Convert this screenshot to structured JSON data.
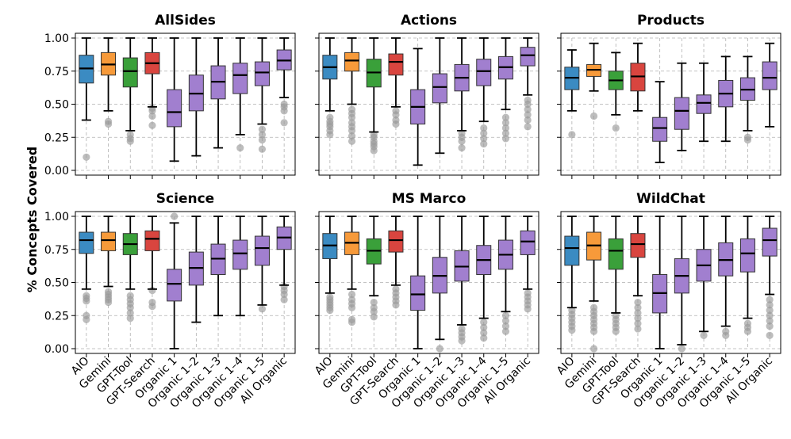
{
  "figure": {
    "ylabel": "% Concepts Covered",
    "y_ticks": [
      "0.00",
      "0.25",
      "0.50",
      "0.75",
      "1.00"
    ],
    "y_tick_values": [
      0,
      0.25,
      0.5,
      0.75,
      1.0
    ],
    "ylim": [
      0,
      1.0
    ],
    "grid": true,
    "methods": [
      "AIO",
      "Gemini",
      "GPT-Tool",
      "GPT-Search",
      "Organic 1",
      "Organic 1–2",
      "Organic 1–3",
      "Organic 1–4",
      "Organic 1–5",
      "All Organic"
    ],
    "colors": {
      "AIO": "#3b8bc2",
      "Gemini": "#f79a3a",
      "GPT-Tool": "#3aa03a",
      "GPT-Search": "#d9453f",
      "Organic": "#a17fcf"
    }
  },
  "chart_data": [
    {
      "type": "box",
      "title": "AllSides",
      "boxes": [
        {
          "min": 0.38,
          "q1": 0.66,
          "median": 0.77,
          "q3": 0.87,
          "max": 1.0,
          "outliers": [
            0.1
          ]
        },
        {
          "min": 0.45,
          "q1": 0.72,
          "median": 0.8,
          "q3": 0.89,
          "max": 1.0,
          "outliers": [
            0.35,
            0.37
          ]
        },
        {
          "min": 0.3,
          "q1": 0.63,
          "median": 0.75,
          "q3": 0.85,
          "max": 1.0,
          "outliers": [
            0.22,
            0.24,
            0.27
          ]
        },
        {
          "min": 0.48,
          "q1": 0.73,
          "median": 0.81,
          "q3": 0.89,
          "max": 1.0,
          "outliers": [
            0.34,
            0.41,
            0.45,
            0.47
          ]
        },
        {
          "min": 0.07,
          "q1": 0.33,
          "median": 0.44,
          "q3": 0.61,
          "max": 1.0,
          "outliers": []
        },
        {
          "min": 0.11,
          "q1": 0.45,
          "median": 0.58,
          "q3": 0.72,
          "max": 1.0,
          "outliers": []
        },
        {
          "min": 0.17,
          "q1": 0.54,
          "median": 0.67,
          "q3": 0.79,
          "max": 1.0,
          "outliers": []
        },
        {
          "min": 0.27,
          "q1": 0.58,
          "median": 0.72,
          "q3": 0.81,
          "max": 1.0,
          "outliers": [
            0.17
          ]
        },
        {
          "min": 0.35,
          "q1": 0.64,
          "median": 0.74,
          "q3": 0.82,
          "max": 1.0,
          "outliers": [
            0.16,
            0.23,
            0.27,
            0.31
          ]
        },
        {
          "min": 0.55,
          "q1": 0.76,
          "median": 0.83,
          "q3": 0.91,
          "max": 1.0,
          "outliers": [
            0.36,
            0.45,
            0.48,
            0.5
          ]
        }
      ]
    },
    {
      "type": "box",
      "title": "Actions",
      "boxes": [
        {
          "min": 0.45,
          "q1": 0.69,
          "median": 0.78,
          "q3": 0.87,
          "max": 1.0,
          "outliers": [
            0.27,
            0.3,
            0.33,
            0.35,
            0.37,
            0.4
          ]
        },
        {
          "min": 0.5,
          "q1": 0.75,
          "median": 0.83,
          "q3": 0.89,
          "max": 1.0,
          "outliers": [
            0.22,
            0.26,
            0.3,
            0.33,
            0.36,
            0.4,
            0.43,
            0.46
          ]
        },
        {
          "min": 0.29,
          "q1": 0.63,
          "median": 0.74,
          "q3": 0.84,
          "max": 1.0,
          "outliers": [
            0.15,
            0.18,
            0.2,
            0.22,
            0.25,
            0.27
          ]
        },
        {
          "min": 0.48,
          "q1": 0.72,
          "median": 0.82,
          "q3": 0.88,
          "max": 1.0,
          "outliers": [
            0.35,
            0.38,
            0.42,
            0.45
          ]
        },
        {
          "min": 0.04,
          "q1": 0.35,
          "median": 0.48,
          "q3": 0.61,
          "max": 0.92,
          "outliers": []
        },
        {
          "min": 0.13,
          "q1": 0.51,
          "median": 0.63,
          "q3": 0.73,
          "max": 1.0,
          "outliers": []
        },
        {
          "min": 0.3,
          "q1": 0.6,
          "median": 0.7,
          "q3": 0.8,
          "max": 1.0,
          "outliers": [
            0.17,
            0.22,
            0.25,
            0.28
          ]
        },
        {
          "min": 0.37,
          "q1": 0.64,
          "median": 0.75,
          "q3": 0.84,
          "max": 1.0,
          "outliers": [
            0.2,
            0.24,
            0.28,
            0.32
          ]
        },
        {
          "min": 0.46,
          "q1": 0.69,
          "median": 0.78,
          "q3": 0.86,
          "max": 1.0,
          "outliers": [
            0.24,
            0.28,
            0.32,
            0.36,
            0.4
          ]
        },
        {
          "min": 0.57,
          "q1": 0.79,
          "median": 0.87,
          "q3": 0.93,
          "max": 1.0,
          "outliers": [
            0.33,
            0.38,
            0.42,
            0.46,
            0.5,
            0.53
          ]
        }
      ]
    },
    {
      "type": "box",
      "title": "Products",
      "boxes": [
        {
          "min": 0.45,
          "q1": 0.61,
          "median": 0.7,
          "q3": 0.78,
          "max": 0.91,
          "outliers": [
            0.27
          ]
        },
        {
          "min": 0.6,
          "q1": 0.71,
          "median": 0.76,
          "q3": 0.8,
          "max": 0.96,
          "outliers": [
            0.41
          ]
        },
        {
          "min": 0.42,
          "q1": 0.61,
          "median": 0.68,
          "q3": 0.75,
          "max": 0.89,
          "outliers": [
            0.32
          ]
        },
        {
          "min": 0.45,
          "q1": 0.6,
          "median": 0.71,
          "q3": 0.81,
          "max": 0.96,
          "outliers": []
        },
        {
          "min": 0.06,
          "q1": 0.22,
          "median": 0.32,
          "q3": 0.4,
          "max": 0.67,
          "outliers": []
        },
        {
          "min": 0.15,
          "q1": 0.31,
          "median": 0.45,
          "q3": 0.55,
          "max": 0.81,
          "outliers": []
        },
        {
          "min": 0.22,
          "q1": 0.43,
          "median": 0.51,
          "q3": 0.57,
          "max": 0.81,
          "outliers": []
        },
        {
          "min": 0.22,
          "q1": 0.48,
          "median": 0.58,
          "q3": 0.68,
          "max": 0.86,
          "outliers": []
        },
        {
          "min": 0.3,
          "q1": 0.53,
          "median": 0.61,
          "q3": 0.7,
          "max": 0.86,
          "outliers": [
            0.23,
            0.25
          ]
        },
        {
          "min": 0.33,
          "q1": 0.61,
          "median": 0.7,
          "q3": 0.82,
          "max": 0.96,
          "outliers": []
        }
      ]
    },
    {
      "type": "box",
      "title": "Science",
      "boxes": [
        {
          "min": 0.45,
          "q1": 0.72,
          "median": 0.82,
          "q3": 0.88,
          "max": 1.0,
          "outliers": [
            0.22,
            0.25,
            0.36,
            0.38,
            0.4
          ]
        },
        {
          "min": 0.47,
          "q1": 0.74,
          "median": 0.82,
          "q3": 0.88,
          "max": 1.0,
          "outliers": [
            0.35,
            0.37,
            0.39,
            0.41,
            0.43
          ]
        },
        {
          "min": 0.45,
          "q1": 0.71,
          "median": 0.79,
          "q3": 0.87,
          "max": 1.0,
          "outliers": [
            0.23,
            0.27,
            0.31,
            0.34,
            0.37,
            0.4
          ]
        },
        {
          "min": 0.45,
          "q1": 0.74,
          "median": 0.83,
          "q3": 0.89,
          "max": 1.0,
          "outliers": [
            0.32,
            0.35,
            0.44
          ]
        },
        {
          "min": 0.0,
          "q1": 0.36,
          "median": 0.49,
          "q3": 0.6,
          "max": 0.95,
          "outliers": [
            1.0
          ]
        },
        {
          "min": 0.2,
          "q1": 0.48,
          "median": 0.61,
          "q3": 0.73,
          "max": 1.0,
          "outliers": []
        },
        {
          "min": 0.25,
          "q1": 0.56,
          "median": 0.68,
          "q3": 0.79,
          "max": 1.0,
          "outliers": []
        },
        {
          "min": 0.25,
          "q1": 0.6,
          "median": 0.72,
          "q3": 0.82,
          "max": 1.0,
          "outliers": []
        },
        {
          "min": 0.33,
          "q1": 0.63,
          "median": 0.76,
          "q3": 0.85,
          "max": 1.0,
          "outliers": [
            0.3
          ]
        },
        {
          "min": 0.48,
          "q1": 0.75,
          "median": 0.84,
          "q3": 0.92,
          "max": 1.0,
          "outliers": [
            0.37,
            0.41,
            0.44,
            0.47
          ]
        }
      ]
    },
    {
      "type": "box",
      "title": "MS Marco",
      "boxes": [
        {
          "min": 0.42,
          "q1": 0.68,
          "median": 0.78,
          "q3": 0.87,
          "max": 1.0,
          "outliers": [
            0.29,
            0.31,
            0.33,
            0.35,
            0.37,
            0.39
          ]
        },
        {
          "min": 0.45,
          "q1": 0.71,
          "median": 0.8,
          "q3": 0.88,
          "max": 1.0,
          "outliers": [
            0.2,
            0.22,
            0.31,
            0.34,
            0.37,
            0.41
          ]
        },
        {
          "min": 0.4,
          "q1": 0.64,
          "median": 0.74,
          "q3": 0.83,
          "max": 1.0,
          "outliers": [
            0.24,
            0.28,
            0.31,
            0.35
          ]
        },
        {
          "min": 0.48,
          "q1": 0.73,
          "median": 0.82,
          "q3": 0.89,
          "max": 1.0,
          "outliers": [
            0.33,
            0.36,
            0.39,
            0.42,
            0.45
          ]
        },
        {
          "min": 0.0,
          "q1": 0.29,
          "median": 0.41,
          "q3": 0.55,
          "max": 1.0,
          "outliers": []
        },
        {
          "min": 0.07,
          "q1": 0.42,
          "median": 0.55,
          "q3": 0.69,
          "max": 1.0,
          "outliers": [
            0.0
          ]
        },
        {
          "min": 0.18,
          "q1": 0.51,
          "median": 0.62,
          "q3": 0.74,
          "max": 1.0,
          "outliers": [
            0.06,
            0.09,
            0.12,
            0.15
          ]
        },
        {
          "min": 0.23,
          "q1": 0.56,
          "median": 0.67,
          "q3": 0.78,
          "max": 1.0,
          "outliers": [
            0.08,
            0.12,
            0.16,
            0.2
          ]
        },
        {
          "min": 0.28,
          "q1": 0.6,
          "median": 0.71,
          "q3": 0.82,
          "max": 1.0,
          "outliers": [
            0.13,
            0.17,
            0.21,
            0.25
          ]
        },
        {
          "min": 0.45,
          "q1": 0.71,
          "median": 0.81,
          "q3": 0.89,
          "max": 1.0,
          "outliers": [
            0.3,
            0.33,
            0.36,
            0.39,
            0.42
          ]
        }
      ]
    },
    {
      "type": "box",
      "title": "WildChat",
      "boxes": [
        {
          "min": 0.31,
          "q1": 0.63,
          "median": 0.76,
          "q3": 0.85,
          "max": 1.0,
          "outliers": [
            0.14,
            0.17,
            0.2,
            0.23,
            0.26,
            0.29
          ]
        },
        {
          "min": 0.36,
          "q1": 0.67,
          "median": 0.78,
          "q3": 0.88,
          "max": 1.0,
          "outliers": [
            0.0,
            0.13,
            0.16,
            0.19,
            0.22,
            0.25,
            0.28,
            0.31
          ]
        },
        {
          "min": 0.27,
          "q1": 0.6,
          "median": 0.74,
          "q3": 0.83,
          "max": 1.0,
          "outliers": [
            0.13,
            0.16,
            0.19,
            0.22,
            0.25
          ]
        },
        {
          "min": 0.4,
          "q1": 0.69,
          "median": 0.79,
          "q3": 0.87,
          "max": 1.0,
          "outliers": [
            0.15,
            0.19,
            0.23,
            0.27,
            0.31,
            0.35
          ]
        },
        {
          "min": 0.0,
          "q1": 0.27,
          "median": 0.42,
          "q3": 0.56,
          "max": 1.0,
          "outliers": []
        },
        {
          "min": 0.03,
          "q1": 0.42,
          "median": 0.55,
          "q3": 0.68,
          "max": 1.0,
          "outliers": [
            0.0
          ]
        },
        {
          "min": 0.13,
          "q1": 0.51,
          "median": 0.63,
          "q3": 0.75,
          "max": 1.0,
          "outliers": [
            0.1
          ]
        },
        {
          "min": 0.17,
          "q1": 0.55,
          "median": 0.67,
          "q3": 0.8,
          "max": 1.0,
          "outliers": [
            0.1,
            0.13
          ]
        },
        {
          "min": 0.23,
          "q1": 0.58,
          "median": 0.72,
          "q3": 0.83,
          "max": 1.0,
          "outliers": [
            0.13,
            0.16,
            0.19
          ]
        },
        {
          "min": 0.41,
          "q1": 0.7,
          "median": 0.82,
          "q3": 0.91,
          "max": 1.0,
          "outliers": [
            0.1,
            0.17,
            0.21,
            0.25,
            0.29,
            0.33,
            0.37
          ]
        }
      ]
    }
  ]
}
